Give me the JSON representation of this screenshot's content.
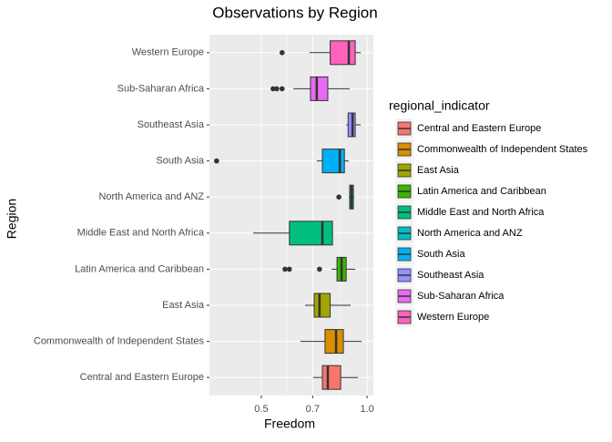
{
  "chart_data": {
    "type": "boxplot",
    "title": "Observations by Region",
    "x_label": "Freedom",
    "y_label": "Region",
    "legend_title": "regional_indicator",
    "log_x": true,
    "xlim": [
      0.356,
      1.042
    ],
    "xticks": [
      0.5,
      0.7,
      {
        "value": 1.0,
        "label": "1.0"
      }
    ],
    "grid": true,
    "categories": [
      "Central and Eastern Europe",
      "Commonwealth of Independent States",
      "East Asia",
      "Latin America and Caribbean",
      "Middle East and North Africa",
      "North America and ANZ",
      "South Asia",
      "Southeast Asia",
      "Sub-Saharan Africa",
      "Western Europe"
    ],
    "series": [
      {
        "name": "Central and Eastern Europe",
        "color": "#F8766D",
        "min": 0.703,
        "q1": 0.746,
        "median": 0.773,
        "q3": 0.841,
        "max": 0.942,
        "outliers": []
      },
      {
        "name": "Commonwealth of Independent States",
        "color": "#D89000",
        "min": 0.646,
        "q1": 0.759,
        "median": 0.816,
        "q3": 0.856,
        "max": 0.965,
        "outliers": []
      },
      {
        "name": "East Asia",
        "color": "#A3A500",
        "min": 0.666,
        "q1": 0.707,
        "median": 0.732,
        "q3": 0.785,
        "max": 0.898,
        "outliers": []
      },
      {
        "name": "Latin America and Caribbean",
        "color": "#39B600",
        "min": 0.792,
        "q1": 0.821,
        "median": 0.846,
        "q3": 0.872,
        "max": 0.925,
        "outliers": [
          0.584,
          0.601,
          0.732
        ]
      },
      {
        "name": "Middle East and North Africa",
        "color": "#00BF7D",
        "min": 0.474,
        "q1": 0.601,
        "median": 0.746,
        "q3": 0.797,
        "max": 0.8,
        "outliers": []
      },
      {
        "name": "North America and ANZ",
        "color": "#00BFC4",
        "min": 0.887,
        "q1": 0.892,
        "median": 0.903,
        "q3": 0.914,
        "max": 0.92,
        "outliers": [
          0.831
        ]
      },
      {
        "name": "South Asia",
        "color": "#00B0F6",
        "min": 0.719,
        "q1": 0.746,
        "median": 0.836,
        "q3": 0.862,
        "max": 0.887,
        "outliers": [
          0.373
        ]
      },
      {
        "name": "Southeast Asia",
        "color": "#9590FF",
        "min": 0.872,
        "q1": 0.883,
        "median": 0.909,
        "q3": 0.925,
        "max": 0.959,
        "outliers": []
      },
      {
        "name": "Sub-Saharan Africa",
        "color": "#E76BF3",
        "min": 0.617,
        "q1": 0.69,
        "median": 0.719,
        "q3": 0.773,
        "max": 0.892,
        "outliers": [
          0.54,
          0.553,
          0.573
        ]
      },
      {
        "name": "Western Europe",
        "color": "#FF62BC",
        "min": 0.686,
        "q1": 0.785,
        "median": 0.887,
        "q3": 0.925,
        "max": 0.959,
        "outliers": [
          0.573
        ]
      }
    ]
  }
}
